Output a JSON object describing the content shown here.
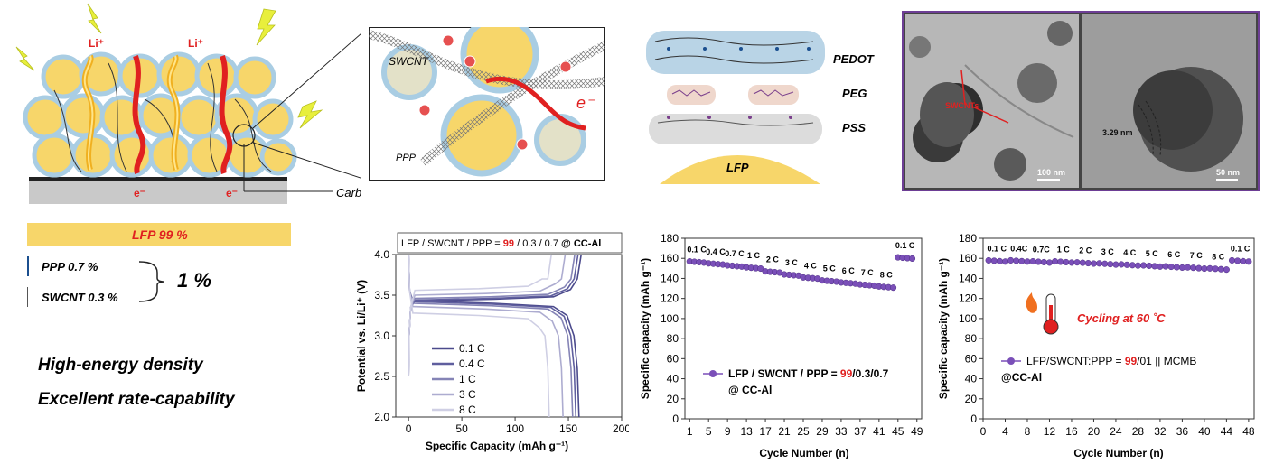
{
  "schematic": {
    "li_label_1": "Li⁺",
    "li_label_2": "Li⁺",
    "electron_1": "e⁻",
    "electron_2": "e⁻",
    "carbon_coating": "Carbon-coating layer",
    "zoom_swcnt": "SWCNT",
    "zoom_ppp": "PPP",
    "zoom_electron": "e⁻",
    "li_ion": "Li⁺"
  },
  "composition": {
    "lfp": "LFP 99 %",
    "ppp": "PPP 0.7 %",
    "swcnt": "SWCNT 0.3 %",
    "total": "1 %"
  },
  "claims": {
    "line1": "High-energy density",
    "line2": "Excellent rate-capability"
  },
  "polymer": {
    "pedot": "PEDOT",
    "peg": "PEG",
    "pss": "PSS",
    "lfp": "LFP"
  },
  "tem": {
    "arrow_label": "SWCNTs",
    "scale_left": "100 nm",
    "spacing": "3.29 nm",
    "scale_right": "50 nm"
  },
  "colors": {
    "lfp_yellow": "#f7d66a",
    "shell_blue": "#a9cde3",
    "red": "#e02020",
    "purple": "#7a4fb8",
    "frame_purple": "#6d3e95"
  },
  "chart_data": [
    {
      "type": "line",
      "title": "LFP / SWCNT / PPP = 99 / 0.3 / 0.7 @ CC-Al",
      "title_parts": {
        "a": "LFP / SWCNT / PPP = ",
        "b": "99",
        "c": " / 0.3 / 0.7 ",
        "d": "@ CC-Al"
      },
      "xlabel": "Specific Capacity (mAh g⁻¹)",
      "ylabel": "Potential vs. Li/Li⁺ (V)",
      "xlim": [
        -12,
        200
      ],
      "ylim": [
        2.0,
        4.0
      ],
      "xticks": [
        "0",
        "50",
        "100",
        "150",
        "200"
      ],
      "yticks": [
        "2.0",
        "2.5",
        "3.0",
        "3.5",
        "4.0"
      ],
      "legend_position": "bottom-left",
      "series": [
        {
          "name": "0.1 C",
          "capacity": 160,
          "charge_plateau": 3.45,
          "discharge_plateau": 3.4,
          "color": "#4b4a8c"
        },
        {
          "name": "0.4 C",
          "capacity": 157,
          "charge_plateau": 3.46,
          "discharge_plateau": 3.39,
          "color": "#5f5e9e"
        },
        {
          "name": "1 C",
          "capacity": 154,
          "charge_plateau": 3.48,
          "discharge_plateau": 3.37,
          "color": "#8584b6"
        },
        {
          "name": "3 C",
          "capacity": 145,
          "charge_plateau": 3.52,
          "discharge_plateau": 3.33,
          "color": "#adacd0"
        },
        {
          "name": "8 C",
          "capacity": 132,
          "charge_plateau": 3.58,
          "discharge_plateau": 3.25,
          "color": "#cfcfe4"
        }
      ]
    },
    {
      "type": "scatter",
      "xlabel": "Cycle Number (n)",
      "ylabel": "Specific capacity (mAh g⁻¹)",
      "xlim": [
        0,
        50
      ],
      "ylim": [
        0,
        180
      ],
      "xticks": [
        "1",
        "5",
        "9",
        "13",
        "17",
        "21",
        "25",
        "29",
        "33",
        "37",
        "41",
        "45",
        "49"
      ],
      "yticks": [
        "0",
        "20",
        "40",
        "60",
        "80",
        "100",
        "120",
        "140",
        "160",
        "180"
      ],
      "rate_labels": [
        "0.1 C",
        "0.4 C",
        "0.7 C",
        "1 C",
        "2 C",
        "3 C",
        "4 C",
        "5 C",
        "6 C",
        "7 C",
        "8 C",
        "0.1 C"
      ],
      "rate_levels": [
        157,
        155,
        153,
        151,
        147,
        144,
        141,
        138,
        136,
        134,
        132,
        161
      ],
      "legend_parts": {
        "a": "LFP / SWCNT / PPP = ",
        "b": "99",
        "c": "/0.3/0.7",
        "d": "@ CC-Al"
      },
      "marker_color": "#7a4fb8"
    },
    {
      "type": "scatter",
      "xlabel": "Cycle Number (n)",
      "ylabel": "Specific capacity (mAh g⁻¹)",
      "xlim": [
        0,
        49
      ],
      "ylim": [
        0,
        180
      ],
      "xticks": [
        "0",
        "4",
        "8",
        "12",
        "16",
        "20",
        "24",
        "28",
        "32",
        "36",
        "40",
        "44",
        "48"
      ],
      "yticks": [
        "0",
        "20",
        "40",
        "60",
        "80",
        "100",
        "120",
        "140",
        "160",
        "180"
      ],
      "rate_labels": [
        "0.1 C",
        "0.4C",
        "0.7C",
        "1 C",
        "2 C",
        "3 C",
        "4 C",
        "5 C",
        "6 C",
        "7 C",
        "8 C",
        "0.1 C"
      ],
      "rate_levels": [
        158,
        158,
        157,
        157,
        156,
        155,
        154,
        153,
        152,
        151,
        150,
        158
      ],
      "annotation": "Cycling at 60 ˚C",
      "legend_parts": {
        "a": "LFP/SWCNT:PPP = ",
        "b": "99",
        "c": "/01 || MCMB",
        "d": "@CC-Al"
      },
      "marker_color": "#7a4fb8"
    }
  ]
}
